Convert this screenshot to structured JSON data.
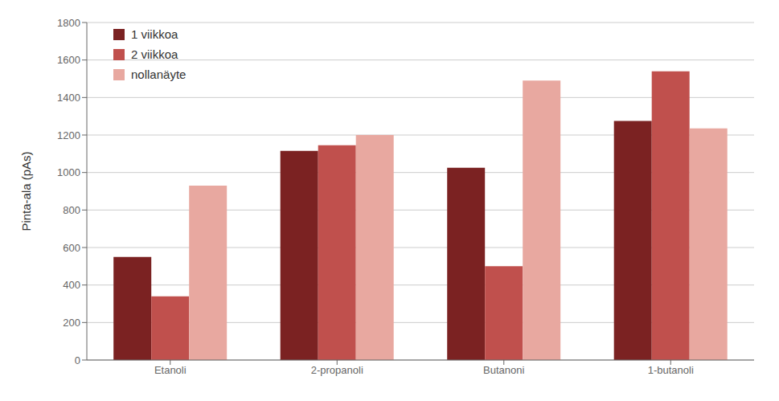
{
  "chart_data": {
    "type": "bar",
    "categories": [
      "Etanoli",
      "2-propanoli",
      "Butanoni",
      "1-butanoli"
    ],
    "series": [
      {
        "name": "1 viikkoa",
        "color": "#7B2222",
        "values": [
          550,
          1115,
          1025,
          1275
        ]
      },
      {
        "name": "2 viikkoa",
        "color": "#C0504D",
        "values": [
          340,
          1145,
          500,
          1540
        ]
      },
      {
        "name": "nollanäyte",
        "color": "#E8A8A0",
        "values": [
          930,
          1200,
          1490,
          1235
        ]
      }
    ],
    "ylabel": "Pinta-ala (pAs)",
    "ylim": [
      0,
      1800
    ],
    "yticks": [
      0,
      200,
      400,
      600,
      800,
      1000,
      1200,
      1400,
      1600,
      1800
    ],
    "grid": true,
    "legend": "upper left"
  }
}
